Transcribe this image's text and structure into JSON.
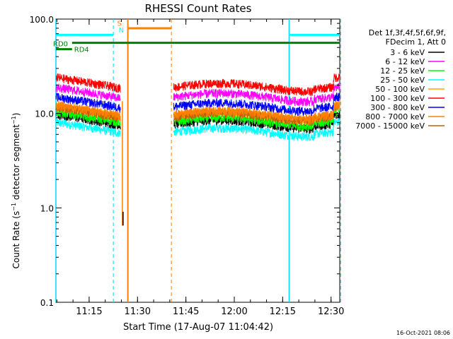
{
  "chart_data": {
    "type": "line",
    "title": "RHESSI Count Rates",
    "xlabel": "Start Time (17-Aug-07 11:04:42)",
    "ylabel_main": "Count Rate (s",
    "ylabel_sup": "−1",
    "ylabel_mid": " detector segment",
    "ylabel_end": ")",
    "yscale": "log",
    "ylim": [
      0.1,
      100.0
    ],
    "yticks": [
      {
        "value": 100.0,
        "label": "100.0"
      },
      {
        "value": 10.0,
        "label": "10.0"
      },
      {
        "value": 1.0,
        "label": "1.0"
      },
      {
        "value": 0.1,
        "label": "0.1"
      }
    ],
    "xlim_min": [
      0,
      88
    ],
    "xticks": [
      {
        "value": 10.3,
        "label": "11:15"
      },
      {
        "value": 25.3,
        "label": "11:30"
      },
      {
        "value": 40.3,
        "label": "11:45"
      },
      {
        "value": 55.3,
        "label": "12:00"
      },
      {
        "value": 70.3,
        "label": "12:15"
      },
      {
        "value": 85.3,
        "label": "12:30"
      }
    ],
    "legend_header": [
      "Det 1f,3f,4f,5f,6f,9f,",
      "FDecim 1, Att 0"
    ],
    "series": [
      {
        "name": "3 - 6 keV",
        "color": "#000000",
        "base": 7.5
      },
      {
        "name": "6 - 12 keV",
        "color": "#ff00ff",
        "base": 14.5
      },
      {
        "name": "12 - 25 keV",
        "color": "#00ff00",
        "base": 8.0
      },
      {
        "name": "25 - 50 keV",
        "color": "#00ffff",
        "base": 6.2
      },
      {
        "name": "50 - 100 keV",
        "color": "#ffa500",
        "base": 9.2
      },
      {
        "name": "100 - 300 keV",
        "color": "#ff0000",
        "base": 18.5
      },
      {
        "name": "300 - 800 keV",
        "color": "#0000ff",
        "base": 11.5
      },
      {
        "name": "800 - 7000 keV",
        "color": "#ff8000",
        "base": 9.5
      },
      {
        "name": "7000 - 15000 keV",
        "color": "#c06000",
        "base": 9.0
      }
    ],
    "segments": [
      [
        0,
        20
      ],
      [
        36.5,
        88
      ]
    ],
    "spike": {
      "x": 20.6,
      "y_top": 13.5,
      "y_bottom": 0.65
    },
    "markers": {
      "cyan_solid": [
        0.0,
        72.3
      ],
      "cyan_dashed": [
        17.8,
        88.3
      ],
      "orange_solid": [
        22.3
      ],
      "orange_dashed": [
        35.8
      ]
    },
    "bars": {
      "cyan_top": {
        "label_text": "",
        "y": 68,
        "ranges": [
          [
            0,
            17.8
          ],
          [
            72.3,
            88
          ]
        ]
      },
      "rd0": {
        "label": "RD0",
        "y": 56,
        "range": [
          5.0,
          88
        ]
      },
      "rd4": {
        "label": "RD4",
        "y": 48,
        "range": [
          0,
          5.0
        ]
      },
      "orange_top": {
        "y": 80,
        "range": [
          22.3,
          35.8
        ]
      }
    },
    "flags": {
      "s": "S",
      "n": "N"
    },
    "footer": "16-Oct-2021 08:06"
  }
}
